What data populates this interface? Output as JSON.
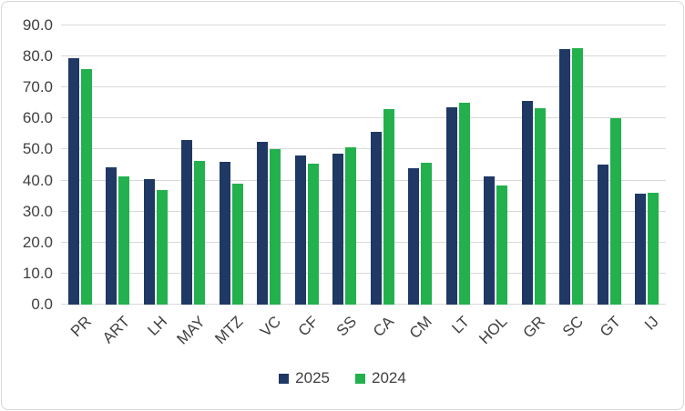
{
  "chart_data": {
    "type": "bar",
    "title": "",
    "xlabel": "",
    "ylabel": "",
    "categories": [
      "PR",
      "ART",
      "LH",
      "MAY",
      "MTZ",
      "VC",
      "CF",
      "SS",
      "CA",
      "CM",
      "LT",
      "HOL",
      "GR",
      "SC",
      "GT",
      "IJ"
    ],
    "series": [
      {
        "name": "2025",
        "color": "#1F3864",
        "values": [
          79.5,
          44.3,
          40.6,
          53.0,
          45.9,
          52.4,
          48.2,
          48.8,
          55.6,
          43.9,
          63.6,
          41.2,
          65.8,
          82.5,
          45.2,
          35.8
        ]
      },
      {
        "name": "2024",
        "color": "#22B14C",
        "values": [
          75.8,
          41.4,
          37.0,
          46.4,
          39.0,
          50.0,
          45.5,
          50.6,
          62.9,
          45.8,
          65.2,
          38.3,
          63.2,
          82.8,
          60.0,
          36.0
        ]
      }
    ],
    "ylim": [
      0,
      90
    ],
    "ytick_step": 10,
    "ytick_format_decimals": 1,
    "grid": true,
    "legend_position": "bottom-center"
  },
  "colors": {
    "background": "#FFFFFF",
    "border": "#D7D7D7",
    "gridline": "#D9D9D9",
    "text": "#404040",
    "series_2025": "#1F3864",
    "series_2024": "#22B14C"
  }
}
